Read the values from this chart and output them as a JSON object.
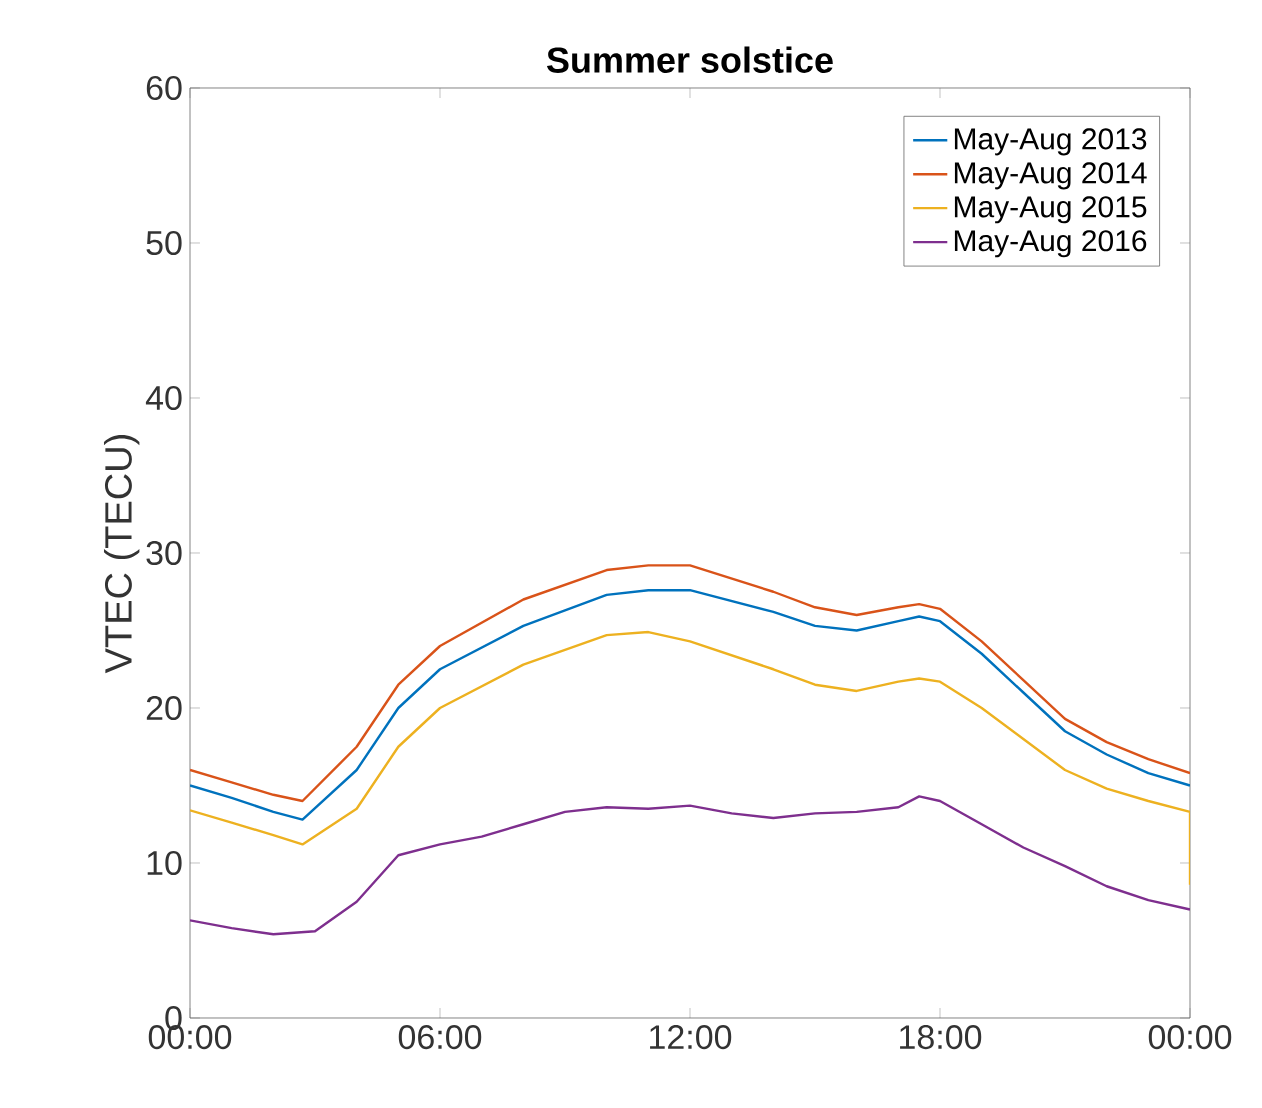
{
  "chart_data": {
    "type": "line",
    "title": "Summer solstice",
    "ylabel": "VTEC (TECU)",
    "xlim": [
      0,
      24
    ],
    "ylim": [
      0,
      60
    ],
    "xticks": [
      {
        "value": 0,
        "label": "00:00"
      },
      {
        "value": 6,
        "label": "06:00"
      },
      {
        "value": 12,
        "label": "12:00"
      },
      {
        "value": 18,
        "label": "18:00"
      },
      {
        "value": 24,
        "label": "00:00"
      }
    ],
    "yticks": [
      0,
      10,
      20,
      30,
      40,
      50,
      60
    ],
    "legend": "top right",
    "grid": false,
    "marker": "none",
    "line_style": "solid",
    "series": [
      {
        "name": "May-Aug 2013",
        "color": "#0072bd",
        "x": [
          0,
          1,
          2,
          2.7,
          4,
          5,
          6,
          8,
          10,
          11,
          12,
          14,
          15,
          16,
          17,
          17.5,
          18,
          19,
          20,
          21,
          22,
          23,
          24
        ],
        "values": [
          15,
          14.2,
          13.3,
          12.8,
          16,
          20,
          22.5,
          25.3,
          27.3,
          27.6,
          27.6,
          26.2,
          25.3,
          25,
          25.6,
          25.9,
          25.6,
          23.5,
          21,
          18.5,
          17,
          15.8,
          15
        ]
      },
      {
        "name": "May-Aug 2014",
        "color": "#d95319",
        "x": [
          0,
          1,
          2,
          2.7,
          4,
          5,
          6,
          8,
          10,
          11,
          12,
          14,
          15,
          16,
          17,
          17.5,
          18,
          19,
          20,
          21,
          22,
          23,
          24
        ],
        "values": [
          16,
          15.2,
          14.4,
          14,
          17.5,
          21.5,
          24,
          27,
          28.9,
          29.2,
          29.2,
          27.5,
          26.5,
          26,
          26.5,
          26.7,
          26.4,
          24.3,
          21.8,
          19.3,
          17.8,
          16.7,
          15.8
        ]
      },
      {
        "name": "May-Aug 2015",
        "color": "#edb120",
        "x": [
          0,
          1,
          2,
          2.7,
          4,
          5,
          6,
          8,
          10,
          11,
          12,
          14,
          15,
          16,
          17,
          17.5,
          18,
          19,
          20,
          21,
          22,
          23,
          24,
          24
        ],
        "values": [
          13.4,
          12.6,
          11.8,
          11.2,
          13.5,
          17.5,
          20,
          22.8,
          24.7,
          24.9,
          24.3,
          22.5,
          21.5,
          21.1,
          21.7,
          21.9,
          21.7,
          20,
          18,
          16,
          14.8,
          14,
          13.3,
          8.6
        ]
      },
      {
        "name": "May-Aug 2016",
        "color": "#7e2f8e",
        "x": [
          0,
          1,
          2,
          3,
          4,
          5,
          6,
          7,
          8,
          9,
          10,
          11,
          12,
          13,
          14,
          15,
          16,
          17,
          17.5,
          18,
          19,
          20,
          21,
          22,
          23,
          24
        ],
        "values": [
          6.3,
          5.8,
          5.4,
          5.6,
          7.5,
          10.5,
          11.2,
          11.7,
          12.5,
          13.3,
          13.6,
          13.5,
          13.7,
          13.2,
          12.9,
          13.2,
          13.3,
          13.6,
          14.3,
          14,
          12.5,
          11,
          9.8,
          8.5,
          7.6,
          7.0
        ]
      }
    ]
  }
}
